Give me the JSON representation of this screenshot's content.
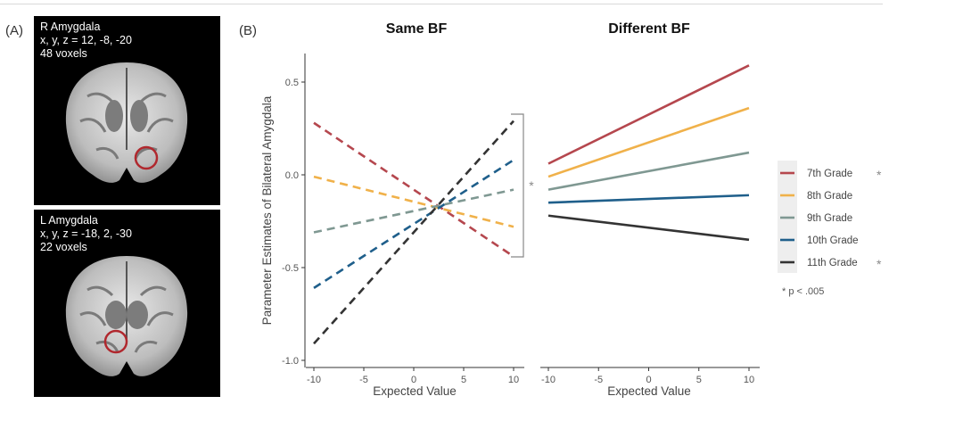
{
  "labels": {
    "a": "(A)",
    "b": "(B)"
  },
  "brains": [
    {
      "region": "R Amygdala",
      "coords": "x, y, z = 12, -8, -20",
      "voxels": "48 voxels"
    },
    {
      "region": "L Amygdala",
      "coords": "x, y, z = -18, 2, -30",
      "voxels": "22 voxels"
    }
  ],
  "colors": {
    "7th": "#b5474e",
    "8th": "#f0b14a",
    "9th": "#7f9892",
    "10th": "#1f5f8b",
    "11th": "#333333"
  },
  "chart_data": [
    {
      "type": "line",
      "title": "Same BF",
      "xlabel": "Expected Value",
      "ylabel": "Parameter Estimates of Bilateral Amygdala",
      "xlim": [
        -10.5,
        10.5
      ],
      "ylim": [
        -1.02,
        0.64
      ],
      "xticks": [
        "-10",
        "-5",
        "0",
        "5",
        "10"
      ],
      "yticks": [
        "0.5",
        "0.0",
        "-0.5",
        "-1.0"
      ],
      "line_style": "dashed",
      "x": [
        -10,
        10
      ],
      "series": [
        {
          "name": "7th Grade",
          "values": [
            0.28,
            -0.44
          ]
        },
        {
          "name": "8th Grade",
          "values": [
            -0.01,
            -0.28
          ]
        },
        {
          "name": "9th Grade",
          "values": [
            -0.31,
            -0.08
          ]
        },
        {
          "name": "10th Grade",
          "values": [
            -0.61,
            0.08
          ]
        },
        {
          "name": "11th Grade",
          "values": [
            -0.91,
            0.29
          ]
        }
      ],
      "annotation": "*"
    },
    {
      "type": "line",
      "title": "Different BF",
      "xlabel": "Expected Value",
      "xlim": [
        -10.5,
        10.5
      ],
      "ylim": [
        -1.02,
        0.64
      ],
      "xticks": [
        "-10",
        "-5",
        "0",
        "5",
        "10"
      ],
      "line_style": "solid",
      "x": [
        -10,
        10
      ],
      "series": [
        {
          "name": "7th Grade",
          "values": [
            0.06,
            0.59
          ]
        },
        {
          "name": "8th Grade",
          "values": [
            -0.01,
            0.36
          ]
        },
        {
          "name": "9th Grade",
          "values": [
            -0.08,
            0.12
          ]
        },
        {
          "name": "10th Grade",
          "values": [
            -0.15,
            -0.11
          ]
        },
        {
          "name": "11th Grade",
          "values": [
            -0.22,
            -0.35
          ]
        }
      ]
    }
  ],
  "legend": [
    {
      "label": "7th Grade",
      "star": "*"
    },
    {
      "label": "8th Grade",
      "star": ""
    },
    {
      "label": "9th Grade",
      "star": ""
    },
    {
      "label": "10th Grade",
      "star": ""
    },
    {
      "label": "11th Grade",
      "star": "*"
    }
  ],
  "legend_note": "* p < .005"
}
